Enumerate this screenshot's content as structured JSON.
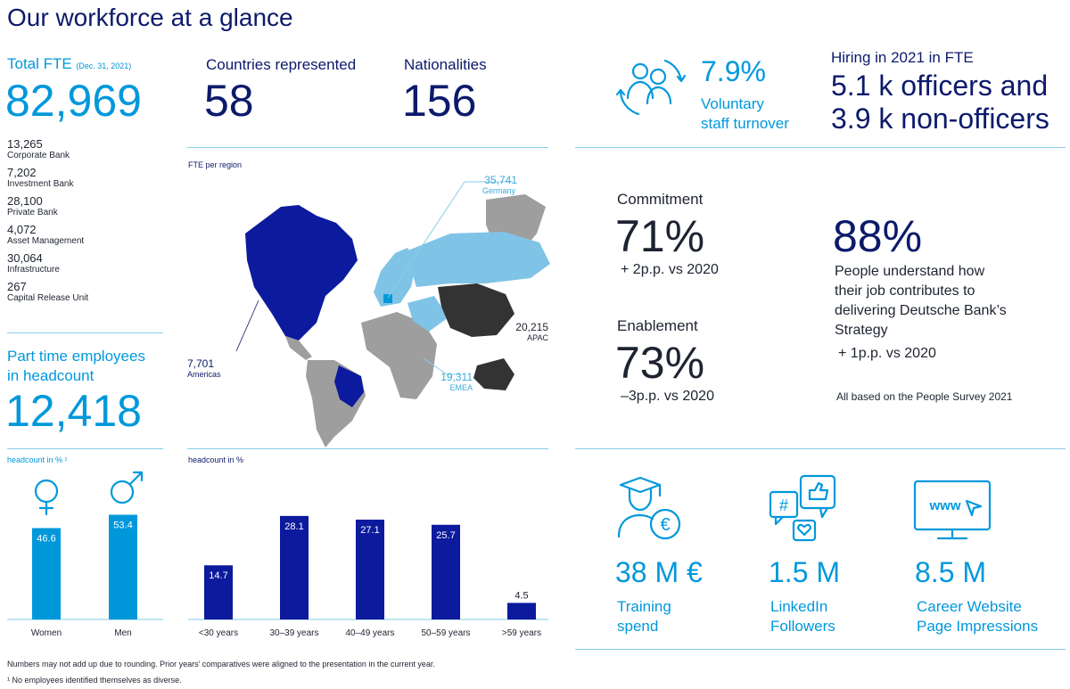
{
  "page_title": "Our workforce at a glance",
  "total_fte": {
    "label": "Total FTE",
    "date": "(Dec. 31, 2021)",
    "value": "82,969",
    "segments": [
      {
        "value": "13,265",
        "label": "Corporate Bank"
      },
      {
        "value": "7,202",
        "label": "Investment Bank"
      },
      {
        "value": "28,100",
        "label": "Private Bank"
      },
      {
        "value": "4,072",
        "label": "Asset Management"
      },
      {
        "value": "30,064",
        "label": "Infrastructure"
      },
      {
        "value": "267",
        "label": "Capital Release Unit"
      }
    ]
  },
  "countries": {
    "label": "Countries represented",
    "value": "58"
  },
  "nationalities": {
    "label": "Nationalities",
    "value": "156"
  },
  "map": {
    "title": "FTE per region",
    "regions": [
      {
        "value": "35,741",
        "name": "Germany"
      },
      {
        "value": "20,215",
        "name": "APAC"
      },
      {
        "value": "19,311",
        "name": "EMEA"
      },
      {
        "value": "7,701",
        "name": "Americas"
      }
    ]
  },
  "part_time": {
    "label_line1": "Part time employees",
    "label_line2": "in headcount",
    "value": "12,418"
  },
  "turnover": {
    "value": "7.9%",
    "label_line1": "Voluntary",
    "label_line2": "staff turnover"
  },
  "hiring": {
    "label": "Hiring in 2021 in FTE",
    "line1": "5.1 k officers and",
    "line2": "3.9 k non-officers"
  },
  "survey": {
    "commitment": {
      "label": "Commitment",
      "value": "71%",
      "change": "+ 2p.p. vs 2020"
    },
    "enablement": {
      "label": "Enablement",
      "value": "73%",
      "change": "–3p.p. vs 2020"
    },
    "strategy": {
      "value": "88%",
      "line1": "People understand how",
      "line2": "their job contributes to",
      "line3": "delivering Deutsche Bank’s",
      "line4": "Strategy",
      "change": "+ 1p.p. vs 2020"
    },
    "note": "All based on the People Survey 2021"
  },
  "training": {
    "value": "38 M €",
    "line1": "Training",
    "line2": "spend"
  },
  "linkedin": {
    "value": "1.5 M",
    "line1": "LinkedIn",
    "line2": "Followers"
  },
  "career": {
    "value": "8.5 M",
    "line1": "Career Website",
    "line2": "Page Impressions"
  },
  "footnotes": {
    "line1": "Numbers may not add up due to rounding. Prior years’ comparatives were aligned to the presentation in the current year.",
    "line2": "¹ No employees identified themselves as diverse."
  },
  "chart_data": [
    {
      "type": "bar",
      "title": "headcount in % ¹",
      "categories": [
        "Women",
        "Men"
      ],
      "values": [
        46.6,
        53.4
      ],
      "ylim": [
        0,
        60
      ],
      "color": "#0098db"
    },
    {
      "type": "bar",
      "title": "headcount in %",
      "categories": [
        "<30 years",
        "30–39 years",
        "40–49 years",
        "50–59 years",
        ">59 years"
      ],
      "values": [
        14.7,
        28.1,
        27.1,
        25.7,
        4.5
      ],
      "ylim": [
        0,
        30
      ],
      "color": "#0c1a9e"
    }
  ],
  "colors": {
    "navy": "#0c1a6b",
    "blue": "#0098db",
    "bar_dark": "#0c1a9e",
    "rule": "#86cde9"
  }
}
